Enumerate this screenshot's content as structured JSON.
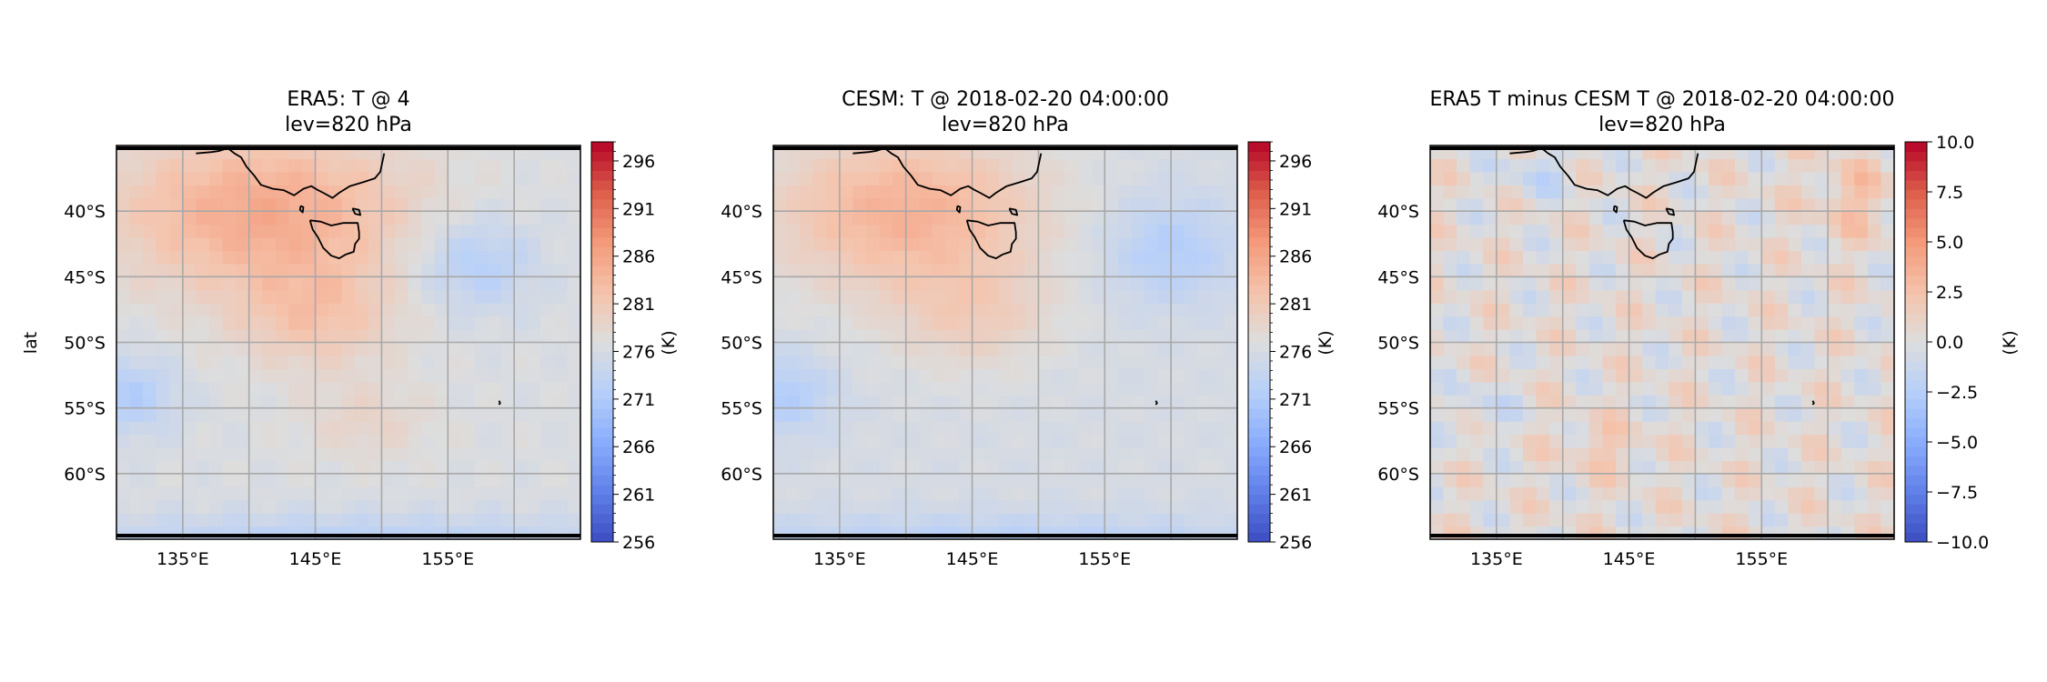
{
  "chart_data": [
    {
      "type": "heatmap",
      "title": "ERA5: T @ 4",
      "subtitle": "lev=820 hPa",
      "ylabel": "lat",
      "colorbar_label": "(K)",
      "colormap": "coolwarm",
      "vmin": 256,
      "vmax": 298,
      "colorbar_ticks": [
        "256",
        "261",
        "266",
        "271",
        "276",
        "281",
        "286",
        "291",
        "296"
      ],
      "field": "abs"
    },
    {
      "type": "heatmap",
      "title": "CESM: T @ 2018-02-20 04:00:00",
      "subtitle": "lev=820 hPa",
      "ylabel": "",
      "colorbar_label": "(K)",
      "colormap": "coolwarm",
      "vmin": 256,
      "vmax": 298,
      "colorbar_ticks": [
        "256",
        "261",
        "266",
        "271",
        "276",
        "281",
        "286",
        "291",
        "296"
      ],
      "field": "abs2"
    },
    {
      "type": "heatmap",
      "title": "ERA5 T minus CESM T @ 2018-02-20 04:00:00",
      "subtitle": "lev=820 hPa",
      "ylabel": "",
      "colorbar_label": "(K)",
      "colormap": "coolwarm",
      "vmin": -10,
      "vmax": 10,
      "colorbar_ticks": [
        "−10.0",
        "−7.5",
        "−5.0",
        "−2.5",
        "0.0",
        "2.5",
        "5.0",
        "7.5",
        "10.0"
      ],
      "field": "diff"
    }
  ],
  "map": {
    "lon_range": [
      130,
      165
    ],
    "lat_range": [
      -65,
      -35
    ],
    "x_ticks": [
      {
        "value": 135,
        "label": "135°E"
      },
      {
        "value": 145,
        "label": "145°E"
      },
      {
        "value": 155,
        "label": "155°E"
      }
    ],
    "y_ticks": [
      {
        "value": -40,
        "label": "40°S"
      },
      {
        "value": -45,
        "label": "45°S"
      },
      {
        "value": -50,
        "label": "50°S"
      },
      {
        "value": -55,
        "label": "55°S"
      },
      {
        "value": -60,
        "label": "60°S"
      }
    ],
    "grid": true,
    "coastlines": [
      "Australia (south coast)",
      "Tasmania",
      "Macquarie Island"
    ]
  },
  "colors": {
    "cmap_low": "#3b4cc0",
    "cmap_mid": "#dddddd",
    "cmap_high": "#b40426",
    "grid": "#a8a8a8",
    "coast": "#000000"
  }
}
